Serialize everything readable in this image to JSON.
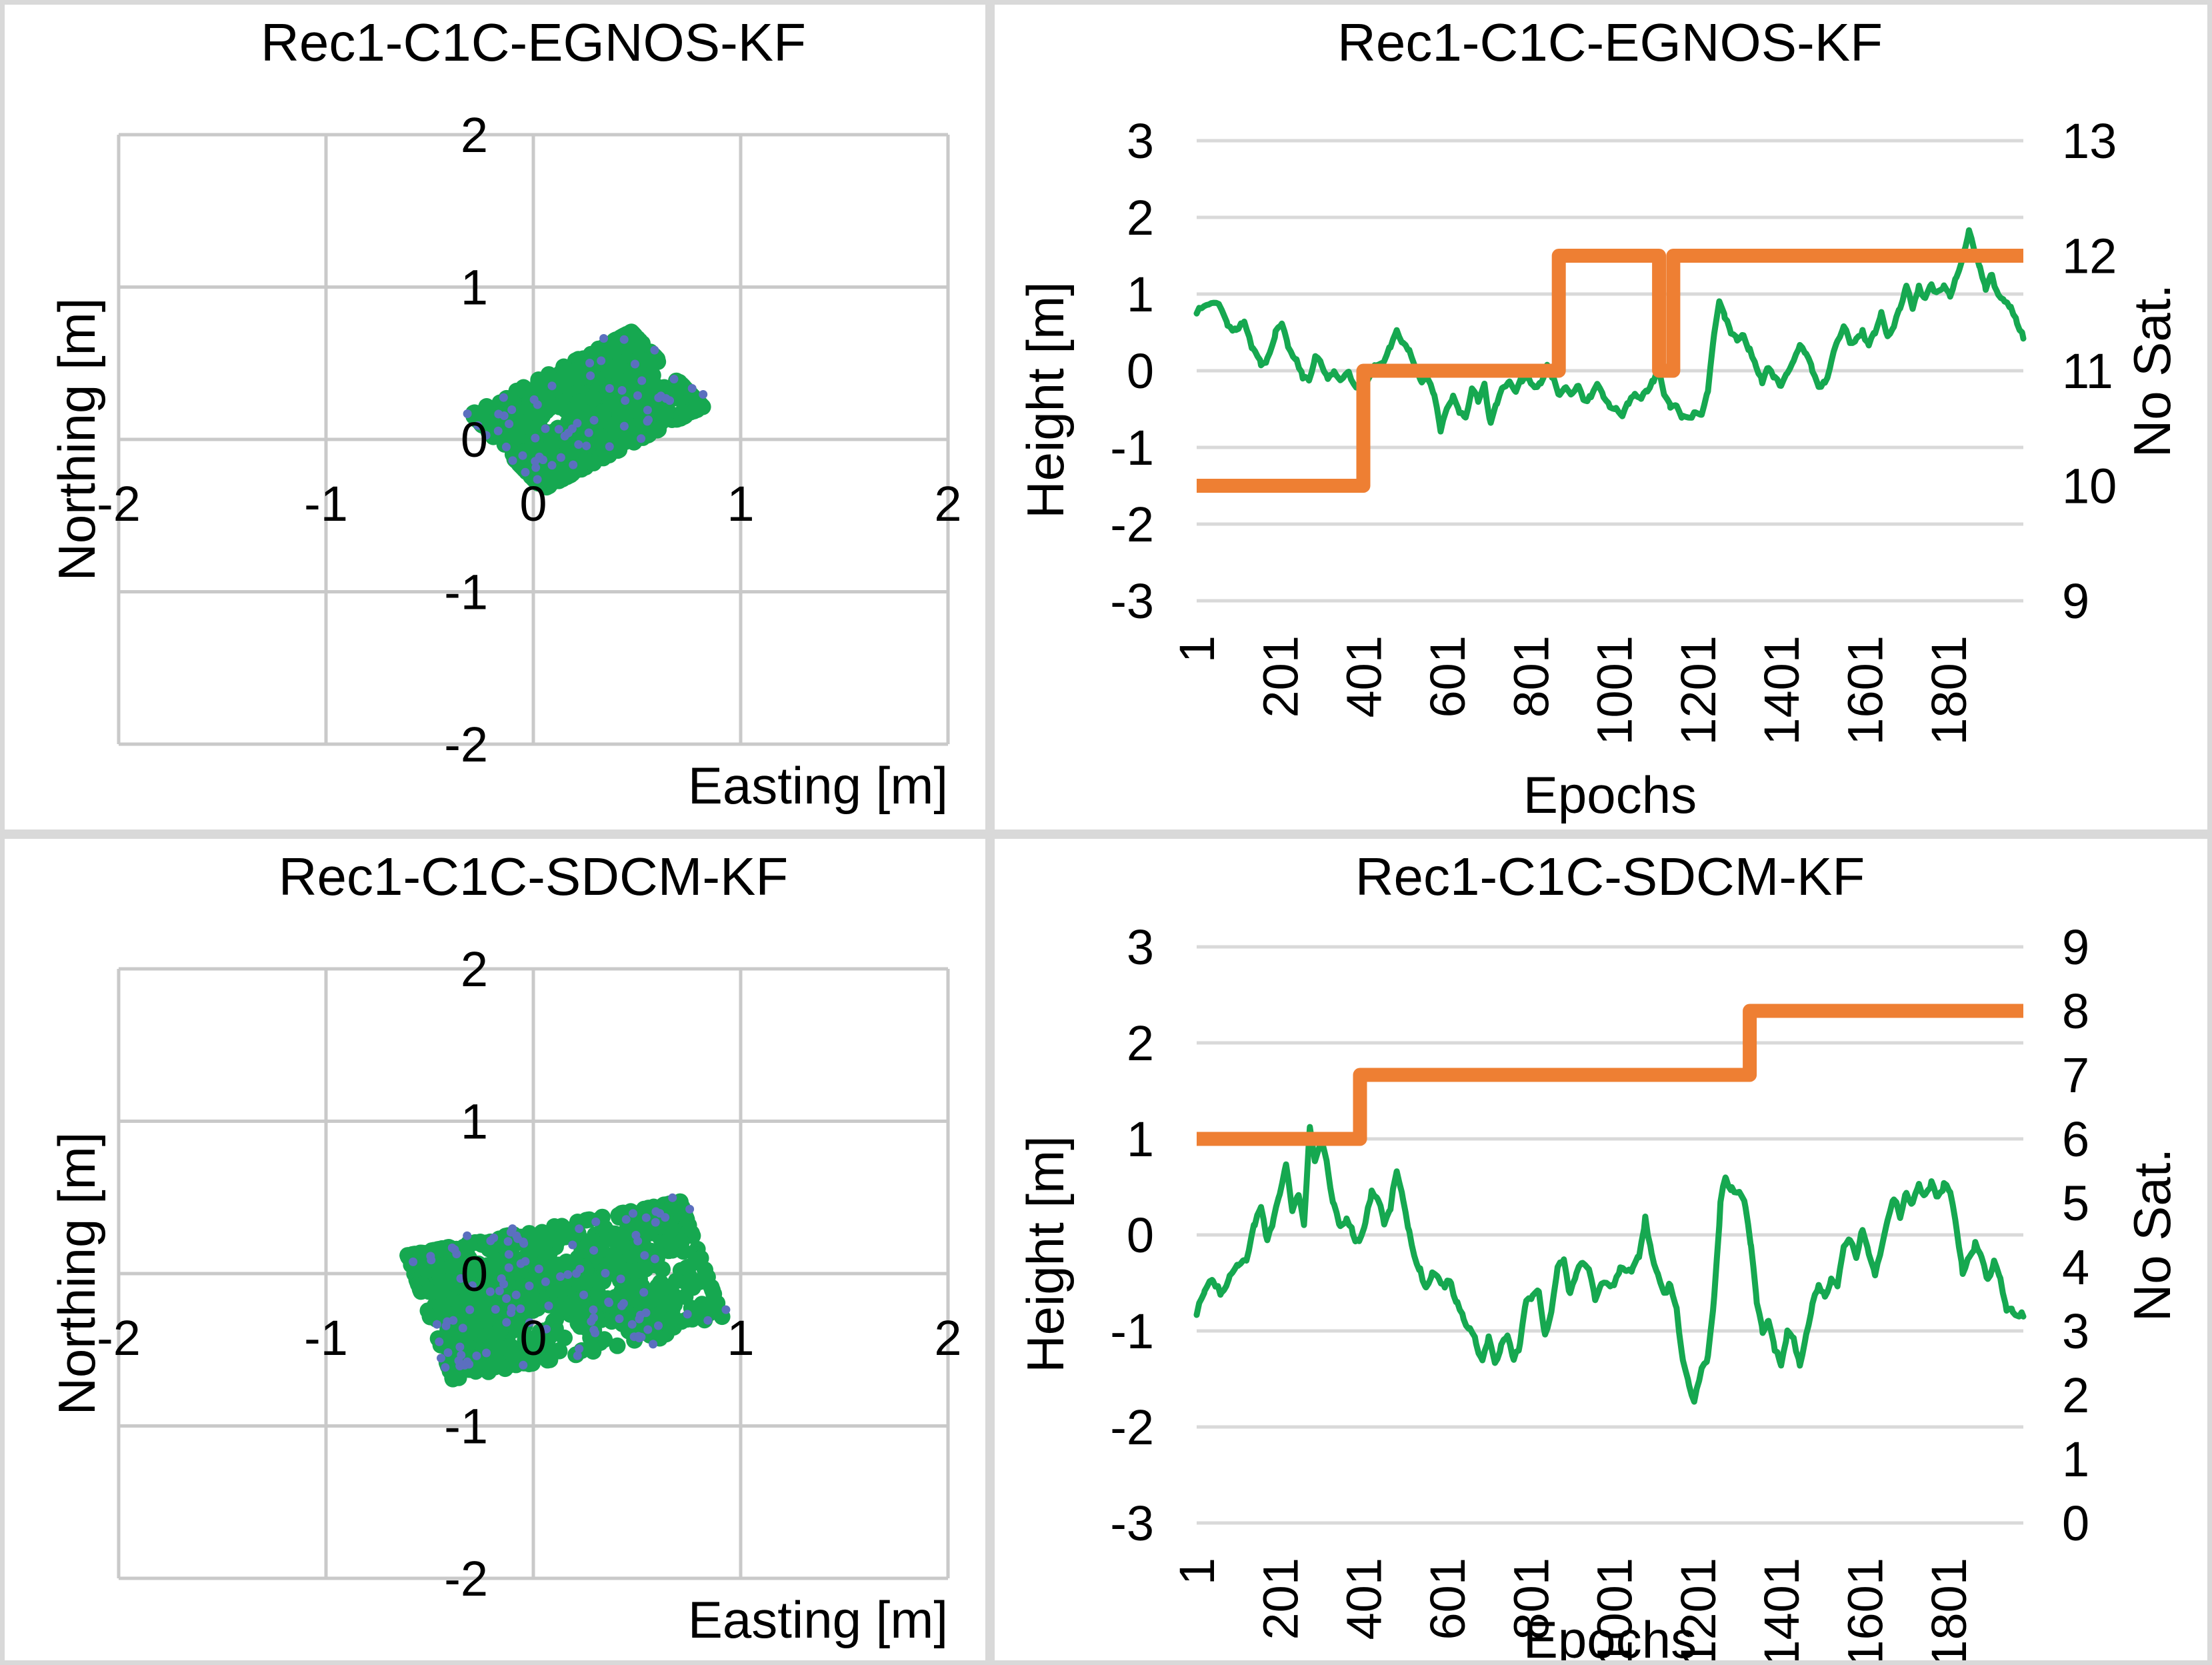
{
  "colors": {
    "green": "#16A850",
    "orange": "#EE7F33",
    "blue": "#5B6FBF",
    "grid_scatter": "#C9C9C9",
    "grid_line": "#D9D9D9",
    "panel_border": "#D9D9D9",
    "text": "#000000"
  },
  "chart_data": [
    {
      "type": "scatter",
      "title": "Rec1-C1C-EGNOS-KF",
      "xlabel": "Easting [m]",
      "ylabel": "Northing [m]",
      "xlim": [
        -2,
        2
      ],
      "ylim": [
        -2,
        2
      ],
      "x_ticks": [
        "-2",
        "-1",
        "0",
        "1",
        "2"
      ],
      "y_ticks": [
        "2",
        "1",
        "0",
        "-1",
        "-2"
      ],
      "grid": true,
      "cluster": {
        "center_e": 0.26,
        "center_n": 0.19,
        "extent_e": [
          -0.19,
          0.7
        ],
        "extent_n": [
          -0.32,
          0.67
        ],
        "angle_deg": 35,
        "half_major": 0.47,
        "half_minor": 0.3,
        "n_points": 900,
        "blue_points": 60
      }
    },
    {
      "type": "line",
      "title": "Rec1-C1C-EGNOS-KF",
      "xlabel": "Epochs",
      "ylabel": "Height [m]",
      "y2label": "No Sat.",
      "xlim": [
        1,
        1980
      ],
      "ylim": [
        -3,
        3
      ],
      "y2lim": [
        9,
        13
      ],
      "x_ticks": [
        "1",
        "201",
        "401",
        "601",
        "801",
        "1001",
        "1201",
        "1401",
        "1601",
        "1801"
      ],
      "y_ticks": [
        "3",
        "2",
        "1",
        "0",
        "-1",
        "-2",
        "-3"
      ],
      "y2_ticks": [
        "13",
        "12",
        "11",
        "10",
        "9"
      ],
      "grid": true,
      "nosat_steps": [
        [
          1,
          400,
          10
        ],
        [
          400,
          868,
          11
        ],
        [
          868,
          1108,
          12
        ],
        [
          1108,
          1142,
          11
        ],
        [
          1142,
          1980,
          12
        ]
      ],
      "height_series": [
        [
          1,
          0.78
        ],
        [
          30,
          0.9
        ],
        [
          55,
          0.95
        ],
        [
          75,
          0.62
        ],
        [
          95,
          0.55
        ],
        [
          115,
          0.68
        ],
        [
          135,
          0.3
        ],
        [
          155,
          0.05
        ],
        [
          170,
          0.12
        ],
        [
          190,
          0.5
        ],
        [
          205,
          0.55
        ],
        [
          220,
          0.33
        ],
        [
          240,
          0.08
        ],
        [
          255,
          -0.1
        ],
        [
          270,
          -0.15
        ],
        [
          285,
          0.1
        ],
        [
          300,
          0.02
        ],
        [
          315,
          -0.15
        ],
        [
          330,
          -0.08
        ],
        [
          345,
          -0.22
        ],
        [
          365,
          -0.12
        ],
        [
          385,
          -0.28
        ],
        [
          400,
          -0.3
        ],
        [
          415,
          -0.18
        ],
        [
          430,
          0.05
        ],
        [
          450,
          0.18
        ],
        [
          465,
          0.32
        ],
        [
          480,
          0.55
        ],
        [
          495,
          0.42
        ],
        [
          510,
          0.28
        ],
        [
          525,
          0.05
        ],
        [
          540,
          -0.12
        ],
        [
          555,
          -0.05
        ],
        [
          570,
          -0.32
        ],
        [
          585,
          -0.72
        ],
        [
          600,
          -0.4
        ],
        [
          615,
          -0.25
        ],
        [
          630,
          -0.48
        ],
        [
          645,
          -0.62
        ],
        [
          660,
          -0.3
        ],
        [
          675,
          -0.42
        ],
        [
          690,
          -0.2
        ],
        [
          705,
          -0.72
        ],
        [
          720,
          -0.5
        ],
        [
          735,
          -0.22
        ],
        [
          750,
          -0.15
        ],
        [
          765,
          -0.38
        ],
        [
          780,
          -0.22
        ],
        [
          795,
          -0.1
        ],
        [
          810,
          -0.22
        ],
        [
          825,
          -0.15
        ],
        [
          840,
          0.05
        ],
        [
          855,
          -0.12
        ],
        [
          870,
          -0.32
        ],
        [
          885,
          -0.25
        ],
        [
          900,
          -0.32
        ],
        [
          915,
          -0.2
        ],
        [
          930,
          -0.38
        ],
        [
          945,
          -0.3
        ],
        [
          960,
          -0.22
        ],
        [
          975,
          -0.32
        ],
        [
          990,
          -0.45
        ],
        [
          1005,
          -0.52
        ],
        [
          1020,
          -0.7
        ],
        [
          1035,
          -0.52
        ],
        [
          1050,
          -0.38
        ],
        [
          1065,
          -0.42
        ],
        [
          1080,
          -0.3
        ],
        [
          1095,
          -0.12
        ],
        [
          1108,
          0.0
        ],
        [
          1122,
          -0.32
        ],
        [
          1135,
          -0.52
        ],
        [
          1150,
          -0.42
        ],
        [
          1165,
          -0.55
        ],
        [
          1180,
          -0.65
        ],
        [
          1195,
          -0.55
        ],
        [
          1210,
          -0.62
        ],
        [
          1225,
          -0.25
        ],
        [
          1240,
          0.5
        ],
        [
          1252,
          0.92
        ],
        [
          1265,
          0.72
        ],
        [
          1280,
          0.55
        ],
        [
          1295,
          0.45
        ],
        [
          1310,
          0.58
        ],
        [
          1325,
          0.35
        ],
        [
          1340,
          0.12
        ],
        [
          1355,
          -0.1
        ],
        [
          1370,
          0.1
        ],
        [
          1385,
          -0.05
        ],
        [
          1400,
          -0.25
        ],
        [
          1415,
          -0.05
        ],
        [
          1430,
          0.12
        ],
        [
          1445,
          0.3
        ],
        [
          1460,
          0.2
        ],
        [
          1475,
          0.0
        ],
        [
          1490,
          -0.15
        ],
        [
          1505,
          -0.1
        ],
        [
          1520,
          0.12
        ],
        [
          1535,
          0.42
        ],
        [
          1550,
          0.62
        ],
        [
          1565,
          0.42
        ],
        [
          1580,
          0.48
        ],
        [
          1595,
          0.58
        ],
        [
          1610,
          0.35
        ],
        [
          1625,
          0.48
        ],
        [
          1640,
          0.72
        ],
        [
          1655,
          0.45
        ],
        [
          1670,
          0.52
        ],
        [
          1685,
          0.82
        ],
        [
          1700,
          1.15
        ],
        [
          1715,
          0.85
        ],
        [
          1730,
          1.08
        ],
        [
          1745,
          0.9
        ],
        [
          1760,
          1.02
        ],
        [
          1775,
          0.95
        ],
        [
          1790,
          1.12
        ],
        [
          1805,
          1.05
        ],
        [
          1820,
          1.28
        ],
        [
          1835,
          1.55
        ],
        [
          1850,
          1.8
        ],
        [
          1863,
          1.5
        ],
        [
          1876,
          1.35
        ],
        [
          1890,
          1.12
        ],
        [
          1905,
          1.28
        ],
        [
          1920,
          1.0
        ],
        [
          1935,
          0.85
        ],
        [
          1950,
          0.8
        ],
        [
          1965,
          0.6
        ],
        [
          1980,
          0.42
        ]
      ]
    },
    {
      "type": "scatter",
      "title": "Rec1-C1C-SDCM-KF",
      "xlabel": "Easting [m]",
      "ylabel": "Northing [m]",
      "xlim": [
        -2,
        2
      ],
      "ylim": [
        -2,
        2
      ],
      "x_ticks": [
        "-2",
        "-1",
        "0",
        "1",
        "2"
      ],
      "y_ticks": [
        "2",
        "1",
        "0",
        "-1",
        "-2"
      ],
      "grid": true,
      "cluster": {
        "center_e": 0.16,
        "center_n": -0.11,
        "extent_e": [
          -0.57,
          0.95
        ],
        "extent_n": [
          -0.68,
          0.45
        ],
        "angle_deg": 15,
        "half_major": 0.68,
        "half_minor": 0.42,
        "n_points": 950,
        "blue_points": 110
      }
    },
    {
      "type": "line",
      "title": "Rec1-C1C-SDCM-KF",
      "xlabel": "Epochs",
      "ylabel": "Height [m]",
      "y2label": "No Sat.",
      "xlim": [
        1,
        1980
      ],
      "ylim": [
        -3,
        3
      ],
      "y2lim": [
        0,
        9
      ],
      "x_ticks": [
        "1",
        "201",
        "401",
        "601",
        "801",
        "1001",
        "1201",
        "1401",
        "1601",
        "1801"
      ],
      "y_ticks": [
        "3",
        "2",
        "1",
        "0",
        "-1",
        "-2",
        "-3"
      ],
      "y2_ticks": [
        "9",
        "8",
        "7",
        "6",
        "5",
        "4",
        "3",
        "2",
        "1",
        "0"
      ],
      "grid": true,
      "nosat_steps": [
        [
          1,
          392,
          6
        ],
        [
          392,
          1325,
          7
        ],
        [
          1325,
          1980,
          8
        ]
      ],
      "height_series": [
        [
          1,
          -0.82
        ],
        [
          20,
          -0.55
        ],
        [
          40,
          -0.45
        ],
        [
          60,
          -0.6
        ],
        [
          80,
          -0.45
        ],
        [
          100,
          -0.35
        ],
        [
          120,
          -0.25
        ],
        [
          140,
          0.1
        ],
        [
          155,
          0.3
        ],
        [
          170,
          -0.05
        ],
        [
          185,
          0.12
        ],
        [
          200,
          0.4
        ],
        [
          215,
          0.65
        ],
        [
          230,
          0.22
        ],
        [
          245,
          0.35
        ],
        [
          258,
          0.1
        ],
        [
          272,
          1.1
        ],
        [
          285,
          0.75
        ],
        [
          300,
          0.9
        ],
        [
          315,
          0.65
        ],
        [
          330,
          0.3
        ],
        [
          345,
          0.1
        ],
        [
          360,
          0.22
        ],
        [
          375,
          0.05
        ],
        [
          390,
          -0.05
        ],
        [
          405,
          0.15
        ],
        [
          420,
          0.45
        ],
        [
          435,
          0.3
        ],
        [
          450,
          0.12
        ],
        [
          465,
          0.35
        ],
        [
          480,
          0.75
        ],
        [
          495,
          0.42
        ],
        [
          510,
          0.1
        ],
        [
          522,
          -0.15
        ],
        [
          536,
          -0.3
        ],
        [
          550,
          -0.55
        ],
        [
          565,
          -0.42
        ],
        [
          580,
          -0.55
        ],
        [
          595,
          -0.62
        ],
        [
          610,
          -0.5
        ],
        [
          625,
          -0.7
        ],
        [
          640,
          -0.9
        ],
        [
          655,
          -1.0
        ],
        [
          670,
          -1.15
        ],
        [
          685,
          -1.28
        ],
        [
          700,
          -1.05
        ],
        [
          715,
          -1.38
        ],
        [
          730,
          -1.2
        ],
        [
          745,
          -1.05
        ],
        [
          760,
          -1.38
        ],
        [
          775,
          -1.2
        ],
        [
          790,
          -0.75
        ],
        [
          805,
          -0.65
        ],
        [
          820,
          -0.6
        ],
        [
          835,
          -1.0
        ],
        [
          850,
          -0.85
        ],
        [
          865,
          -0.45
        ],
        [
          880,
          -0.35
        ],
        [
          895,
          -0.65
        ],
        [
          910,
          -0.5
        ],
        [
          925,
          -0.35
        ],
        [
          940,
          -0.42
        ],
        [
          955,
          -0.75
        ],
        [
          970,
          -0.55
        ],
        [
          985,
          -0.5
        ],
        [
          1000,
          -0.55
        ],
        [
          1015,
          -0.4
        ],
        [
          1030,
          -0.45
        ],
        [
          1045,
          -0.4
        ],
        [
          1060,
          -0.2
        ],
        [
          1075,
          0.2
        ],
        [
          1090,
          -0.2
        ],
        [
          1105,
          -0.45
        ],
        [
          1120,
          -0.6
        ],
        [
          1135,
          -0.5
        ],
        [
          1150,
          -0.72
        ],
        [
          1165,
          -1.3
        ],
        [
          1180,
          -1.55
        ],
        [
          1192,
          -1.7
        ],
        [
          1210,
          -1.4
        ],
        [
          1225,
          -1.3
        ],
        [
          1240,
          -0.72
        ],
        [
          1255,
          0.3
        ],
        [
          1268,
          0.6
        ],
        [
          1282,
          0.5
        ],
        [
          1300,
          0.45
        ],
        [
          1315,
          0.3
        ],
        [
          1328,
          -0.1
        ],
        [
          1342,
          -0.7
        ],
        [
          1356,
          -1.0
        ],
        [
          1370,
          -0.85
        ],
        [
          1385,
          -1.15
        ],
        [
          1400,
          -1.3
        ],
        [
          1415,
          -0.95
        ],
        [
          1430,
          -1.1
        ],
        [
          1445,
          -1.35
        ],
        [
          1460,
          -1.0
        ],
        [
          1475,
          -0.75
        ],
        [
          1490,
          -0.6
        ],
        [
          1505,
          -0.7
        ],
        [
          1520,
          -0.45
        ],
        [
          1535,
          -0.55
        ],
        [
          1550,
          -0.2
        ],
        [
          1565,
          -0.1
        ],
        [
          1580,
          -0.3
        ],
        [
          1595,
          0.05
        ],
        [
          1610,
          -0.2
        ],
        [
          1625,
          -0.45
        ],
        [
          1640,
          -0.2
        ],
        [
          1655,
          0.05
        ],
        [
          1670,
          0.3
        ],
        [
          1685,
          0.15
        ],
        [
          1700,
          0.45
        ],
        [
          1715,
          0.35
        ],
        [
          1730,
          0.5
        ],
        [
          1745,
          0.4
        ],
        [
          1760,
          0.55
        ],
        [
          1775,
          0.4
        ],
        [
          1790,
          0.55
        ],
        [
          1805,
          0.5
        ],
        [
          1820,
          0.1
        ],
        [
          1835,
          -0.35
        ],
        [
          1850,
          -0.2
        ],
        [
          1865,
          -0.05
        ],
        [
          1880,
          -0.25
        ],
        [
          1895,
          -0.45
        ],
        [
          1910,
          -0.3
        ],
        [
          1925,
          -0.55
        ],
        [
          1940,
          -0.8
        ],
        [
          1955,
          -0.85
        ],
        [
          1970,
          -0.9
        ],
        [
          1980,
          -0.85
        ]
      ]
    }
  ]
}
